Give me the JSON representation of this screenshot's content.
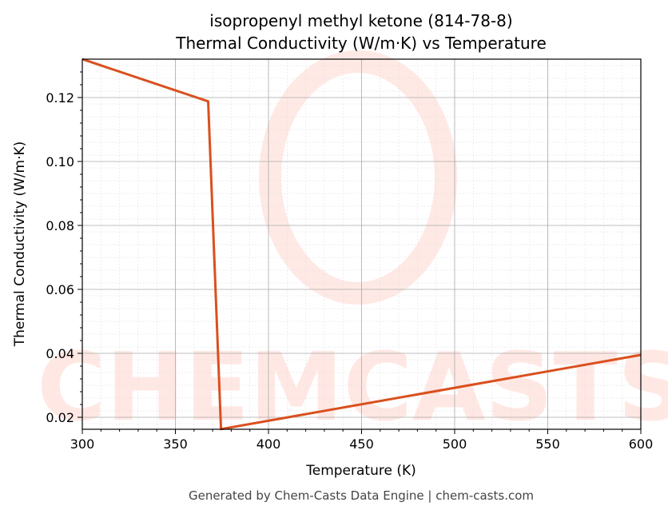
{
  "chart_data": {
    "type": "line",
    "title": "isopropenyl methyl ketone (814-78-8)",
    "subtitle": "Thermal Conductivity (W/m·K) vs Temperature",
    "xlabel": "Temperature (K)",
    "ylabel": "Thermal Conductivity (W/m·K)",
    "xlim": [
      300,
      600
    ],
    "ylim": [
      0.01625,
      0.132
    ],
    "xticks": [
      "300",
      "350",
      "400",
      "450",
      "500",
      "550",
      "600"
    ],
    "yticks": [
      "0.02",
      "0.04",
      "0.06",
      "0.08",
      "0.10",
      "0.12"
    ],
    "grid": true,
    "series": [
      {
        "color": "#d9501e",
        "x": [
          300,
          367.6,
          374.5,
          600
        ],
        "y": [
          0.132,
          0.1188,
          0.0163,
          0.0395
        ]
      }
    ],
    "watermark": "CHEMCASTS",
    "footer": "Generated by Chem-Casts Data Engine | chem-casts.com"
  }
}
